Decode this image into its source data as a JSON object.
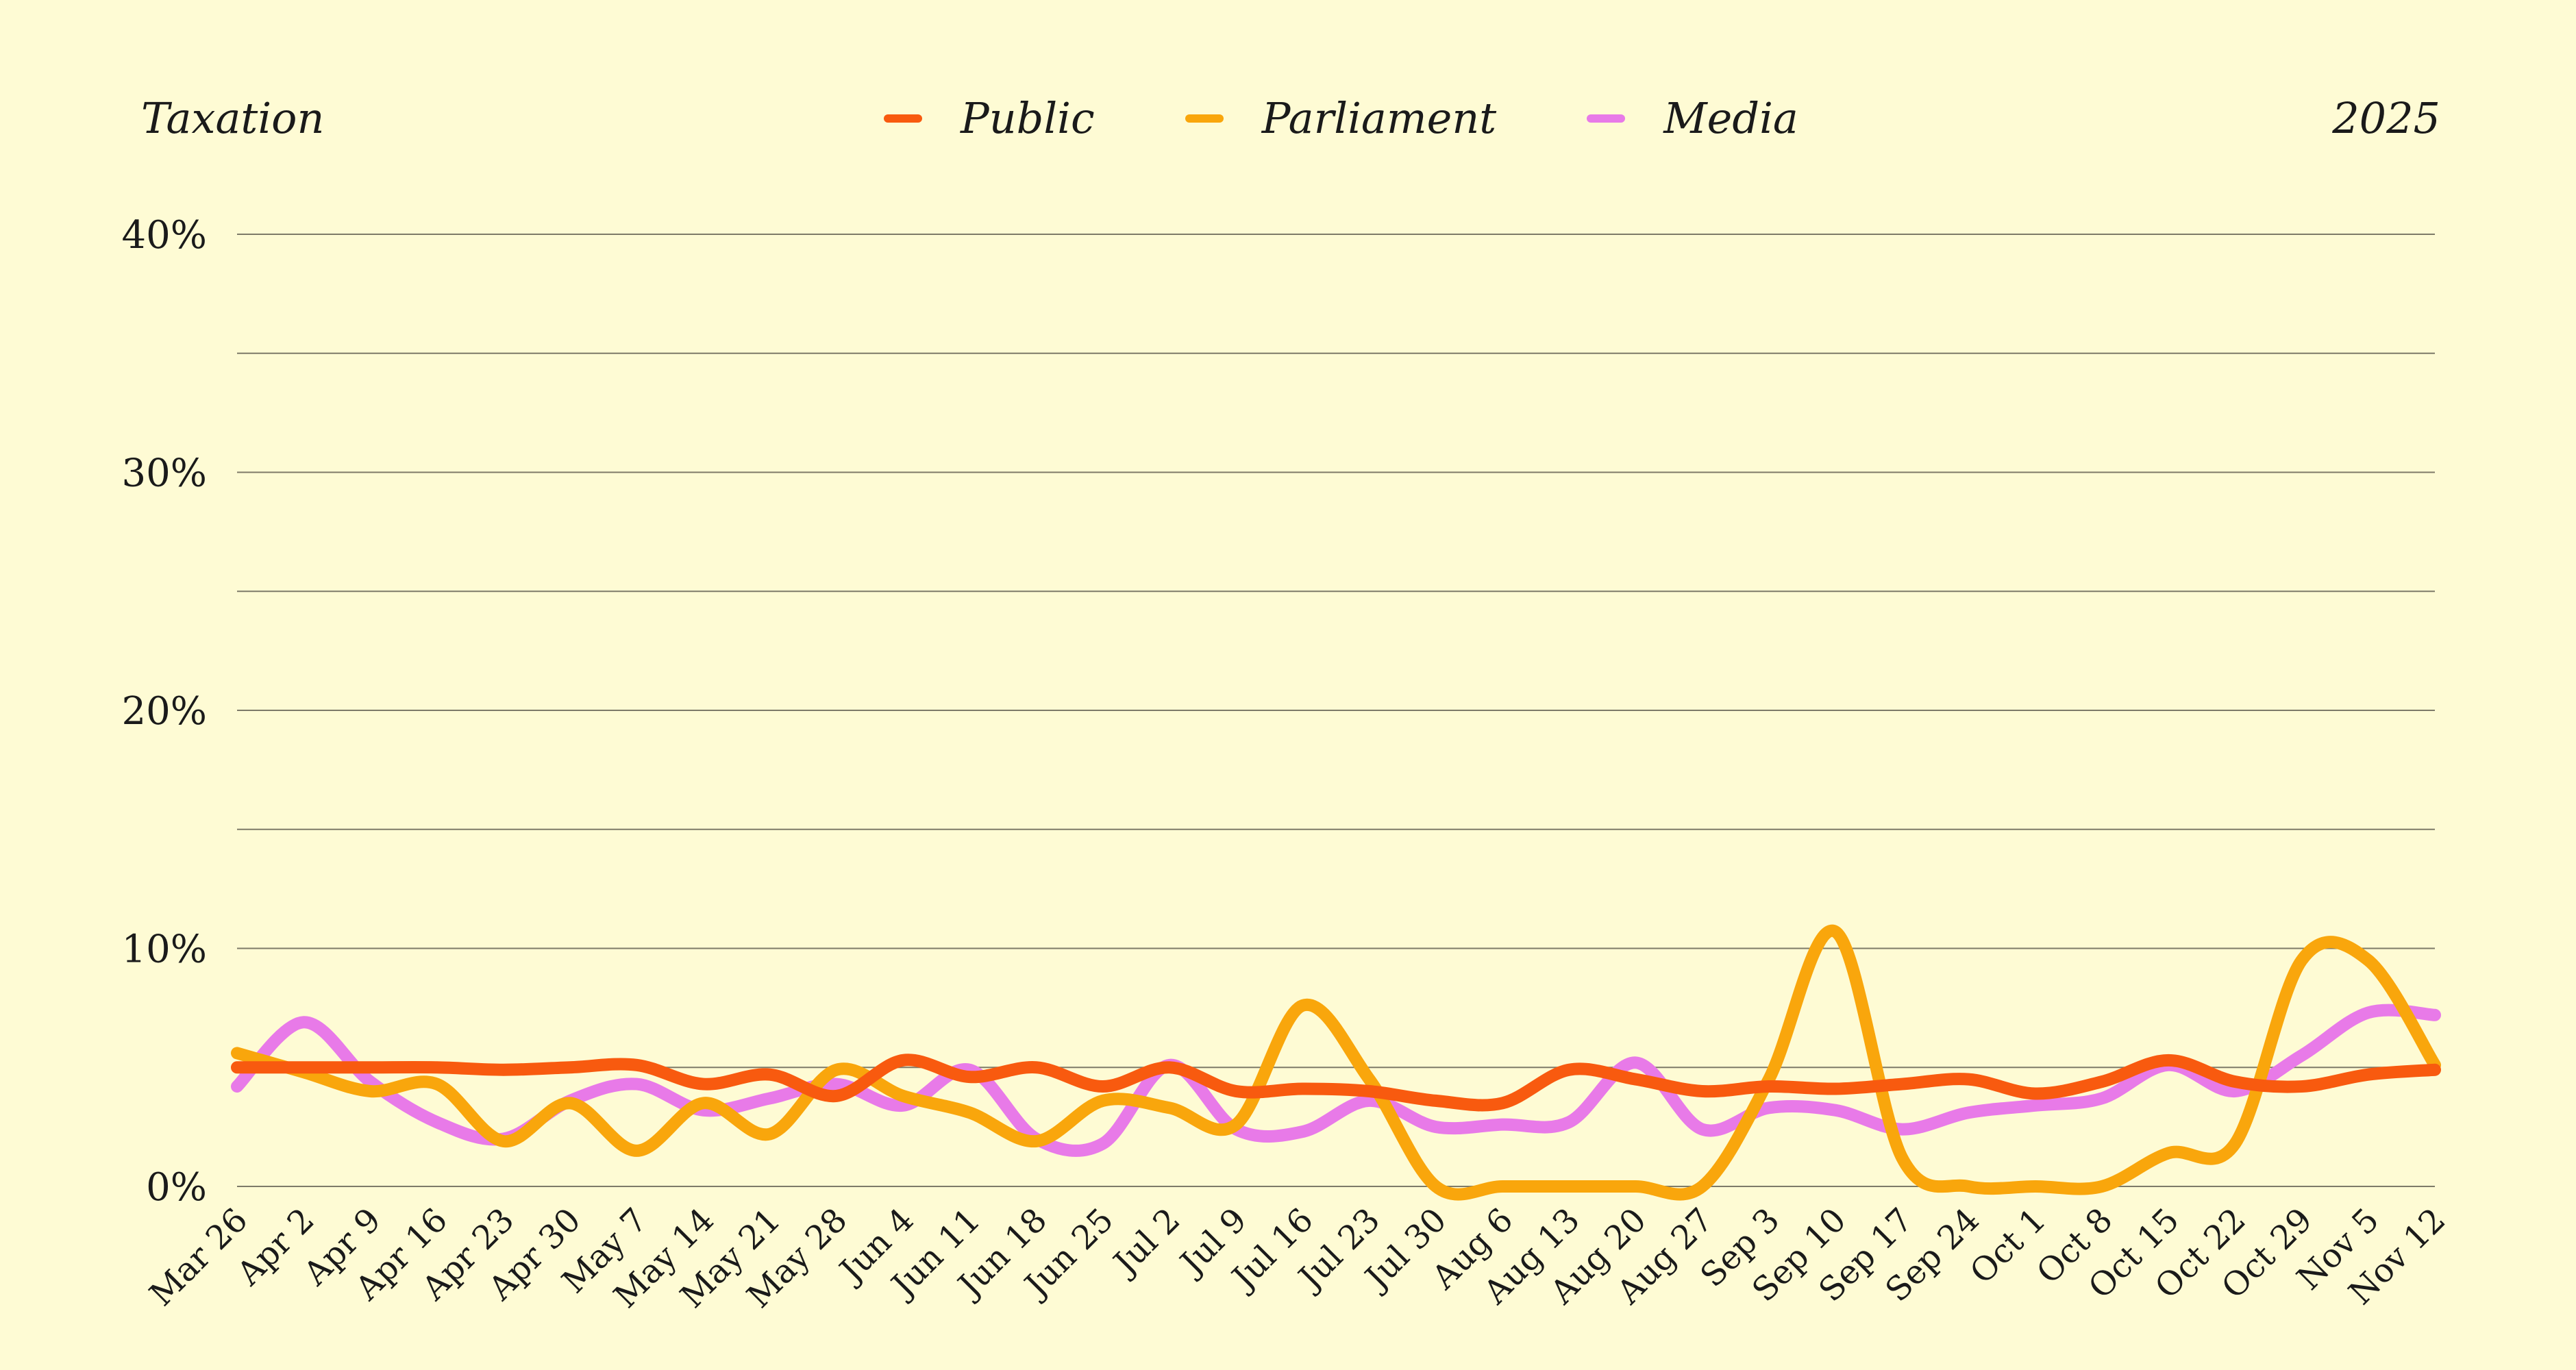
{
  "header": {
    "topic": "Taxation",
    "year": "2025"
  },
  "chart_data": {
    "type": "line",
    "title": "",
    "xlabel": "",
    "ylabel": "",
    "ylim": [
      0,
      40
    ],
    "ytick_values": [
      0,
      10,
      20,
      30,
      40
    ],
    "ytick_labels": [
      "0%",
      "10%",
      "20%",
      "30%",
      "40%"
    ],
    "grid": true,
    "legend_position": "top-center",
    "x": [
      "Mar 26",
      "Apr 2",
      "Apr 9",
      "Apr 16",
      "Apr 23",
      "Apr 30",
      "May 7",
      "May 14",
      "May 21",
      "May 28",
      "Jun 4",
      "Jun 11",
      "Jun 18",
      "Jun 25",
      "Jul 2",
      "Jul 9",
      "Jul 16",
      "Jul 23",
      "Jul 30",
      "Aug 6",
      "Aug 13",
      "Aug 20",
      "Aug 27",
      "Sep 3",
      "Sep 10",
      "Sep 17",
      "Sep 24",
      "Oct 1",
      "Oct 8",
      "Oct 15",
      "Oct 22",
      "Oct 29",
      "Nov 5",
      "Nov 12"
    ],
    "series": [
      {
        "name": "Public",
        "color": "#f85a0f",
        "values": [
          5.0,
          5.0,
          5.0,
          5.0,
          4.9,
          5.0,
          5.1,
          4.3,
          4.7,
          3.8,
          5.3,
          4.6,
          5.0,
          4.2,
          5.0,
          4.0,
          4.1,
          4.0,
          3.6,
          3.5,
          4.9,
          4.5,
          4.0,
          4.2,
          4.1,
          4.3,
          4.5,
          3.9,
          4.4,
          5.3,
          4.4,
          4.2,
          4.7,
          4.9
        ]
      },
      {
        "name": "Parliament",
        "color": "#f9a60c",
        "values": [
          5.6,
          4.8,
          4.0,
          4.3,
          1.9,
          3.5,
          1.5,
          3.5,
          2.2,
          4.9,
          3.8,
          3.1,
          1.9,
          3.6,
          3.3,
          2.6,
          7.6,
          4.5,
          0.0,
          0.0,
          0.0,
          0.0,
          0.0,
          4.5,
          10.7,
          1.2,
          0.0,
          0.0,
          0.0,
          1.4,
          1.8,
          9.5,
          9.5,
          5.1
        ]
      },
      {
        "name": "Media",
        "color": "#e87ae8",
        "values": [
          4.2,
          6.9,
          4.4,
          2.7,
          2.0,
          3.6,
          4.3,
          3.2,
          3.7,
          4.3,
          3.4,
          4.9,
          2.0,
          1.8,
          5.1,
          2.4,
          2.3,
          3.6,
          2.5,
          2.6,
          2.7,
          5.2,
          2.4,
          3.3,
          3.2,
          2.4,
          3.1,
          3.4,
          3.7,
          5.1,
          4.0,
          5.5,
          7.3,
          7.2
        ]
      }
    ]
  }
}
